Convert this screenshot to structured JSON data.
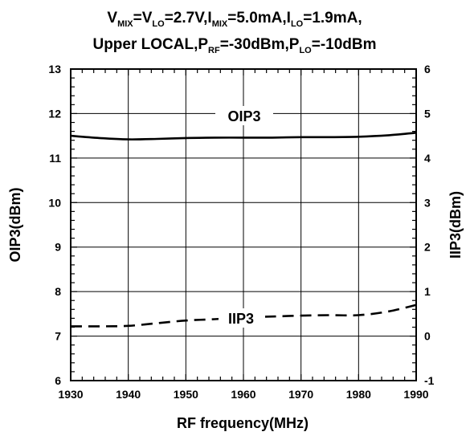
{
  "chart_data": {
    "type": "line",
    "title_line1": {
      "runs": [
        {
          "t": "V",
          "sub": false
        },
        {
          "t": "MIX",
          "sub": true
        },
        {
          "t": "=V",
          "sub": false
        },
        {
          "t": "LO",
          "sub": true
        },
        {
          "t": "=2.7V,I",
          "sub": false
        },
        {
          "t": "MIX",
          "sub": true
        },
        {
          "t": "=5.0mA,I",
          "sub": false
        },
        {
          "t": "LO",
          "sub": true
        },
        {
          "t": "=1.9mA,",
          "sub": false
        }
      ]
    },
    "title_line2": {
      "runs": [
        {
          "t": "Upper LOCAL,P",
          "sub": false
        },
        {
          "t": "RF",
          "sub": true
        },
        {
          "t": "=-30dBm,P",
          "sub": false
        },
        {
          "t": "LO",
          "sub": true
        },
        {
          "t": "=-10dBm",
          "sub": false
        }
      ]
    },
    "xlabel": "RF frequency(MHz)",
    "ylabel_left": "OIP3(dBm)",
    "ylabel_right": "IIP3(dBm)",
    "xlim": [
      1930,
      1990
    ],
    "ylim_left": [
      6,
      13
    ],
    "ylim_right": [
      -1,
      6
    ],
    "x_ticks": [
      "1930",
      "1940",
      "1950",
      "1960",
      "1970",
      "1980",
      "1990"
    ],
    "y_left_ticks": [
      "6",
      "7",
      "8",
      "9",
      "10",
      "11",
      "12",
      "13"
    ],
    "y_right_ticks": [
      "-1",
      "0",
      "1",
      "2",
      "3",
      "4",
      "5",
      "6"
    ],
    "grid": true,
    "series": [
      {
        "name": "OIP3",
        "axis": "left",
        "style": "solid",
        "x": [
          1930,
          1935,
          1940,
          1945,
          1950,
          1955,
          1960,
          1965,
          1970,
          1975,
          1980,
          1985,
          1990
        ],
        "y": [
          11.5,
          11.45,
          11.42,
          11.43,
          11.45,
          11.46,
          11.46,
          11.46,
          11.47,
          11.47,
          11.48,
          11.51,
          11.57
        ]
      },
      {
        "name": "IIP3",
        "axis": "right",
        "style": "dashed",
        "x": [
          1930,
          1935,
          1940,
          1945,
          1950,
          1955,
          1960,
          1965,
          1970,
          1975,
          1980,
          1985,
          1990
        ],
        "y": [
          0.22,
          0.22,
          0.23,
          0.29,
          0.35,
          0.38,
          0.42,
          0.44,
          0.46,
          0.47,
          0.47,
          0.55,
          0.7
        ]
      }
    ]
  },
  "colors": {
    "line": "#000000",
    "grid": "#000000",
    "background": "#ffffff"
  }
}
